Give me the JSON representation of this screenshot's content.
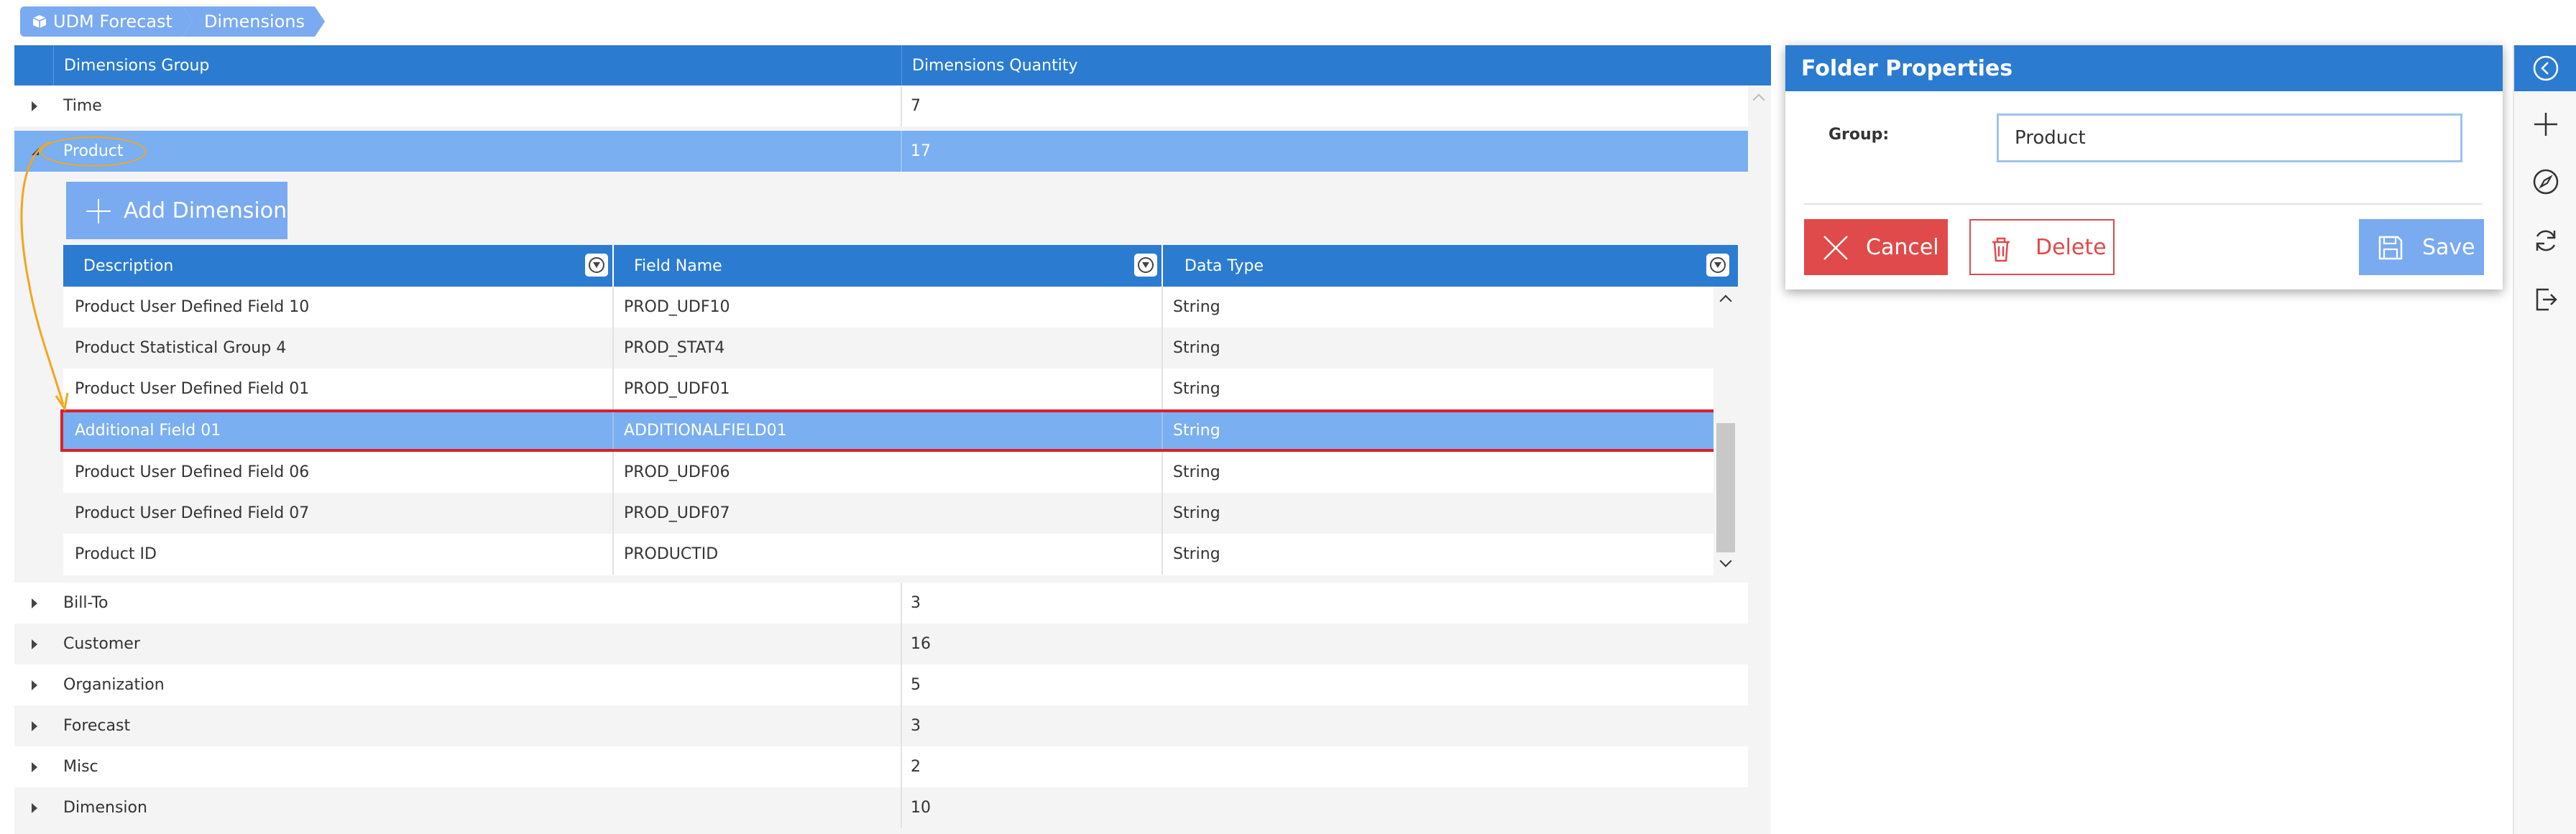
{
  "breadcrumb": {
    "items": [
      {
        "label": "UDM Forecast",
        "icon": "cube-icon"
      },
      {
        "label": "Dimensions"
      }
    ]
  },
  "main_grid": {
    "columns": [
      "Dimensions Group",
      "Dimensions Quantity"
    ],
    "rows_before": [
      {
        "group": "Time",
        "quantity": "7"
      },
      {
        "group": "Product",
        "quantity": "17",
        "expanded": true,
        "selected": true
      }
    ],
    "rows_after": [
      {
        "group": "Bill-To",
        "quantity": "3"
      },
      {
        "group": "Customer",
        "quantity": "16"
      },
      {
        "group": "Organization",
        "quantity": "5"
      },
      {
        "group": "Forecast",
        "quantity": "3"
      },
      {
        "group": "Misc",
        "quantity": "2"
      },
      {
        "group": "Dimension",
        "quantity": "10"
      }
    ]
  },
  "detail": {
    "add_button": "Add Dimension",
    "columns": [
      "Description",
      "Field Name",
      "Data Type"
    ],
    "rows": [
      {
        "description": "Product User Defined Field 10",
        "field": "PROD_UDF10",
        "type": "String"
      },
      {
        "description": "Product Statistical Group 4",
        "field": "PROD_STAT4",
        "type": "String"
      },
      {
        "description": "Product User Defined Field 01",
        "field": "PROD_UDF01",
        "type": "String"
      },
      {
        "description": "Additional Field 01",
        "field": "ADDITIONALFIELD01",
        "type": "String",
        "highlighted": true
      },
      {
        "description": "Product User Defined Field 06",
        "field": "PROD_UDF06",
        "type": "String"
      },
      {
        "description": "Product User Defined Field 07",
        "field": "PROD_UDF07",
        "type": "String"
      },
      {
        "description": "Product ID",
        "field": "PRODUCTID",
        "type": "String"
      }
    ]
  },
  "folder_properties": {
    "title": "Folder Properties",
    "group_label": "Group:",
    "group_value": "Product",
    "cancel_label": "Cancel",
    "delete_label": "Delete",
    "save_label": "Save"
  },
  "toolbar": {
    "icons": [
      "collapse-left-icon",
      "plus-icon",
      "compass-icon",
      "refresh-icon",
      "exit-icon"
    ]
  },
  "colors": {
    "header_blue": "#2b7bd1",
    "light_blue": "#7aaff1",
    "danger_red": "#e04a4a",
    "annotation_orange": "#f2a71e",
    "highlight_border": "#d9202a"
  }
}
